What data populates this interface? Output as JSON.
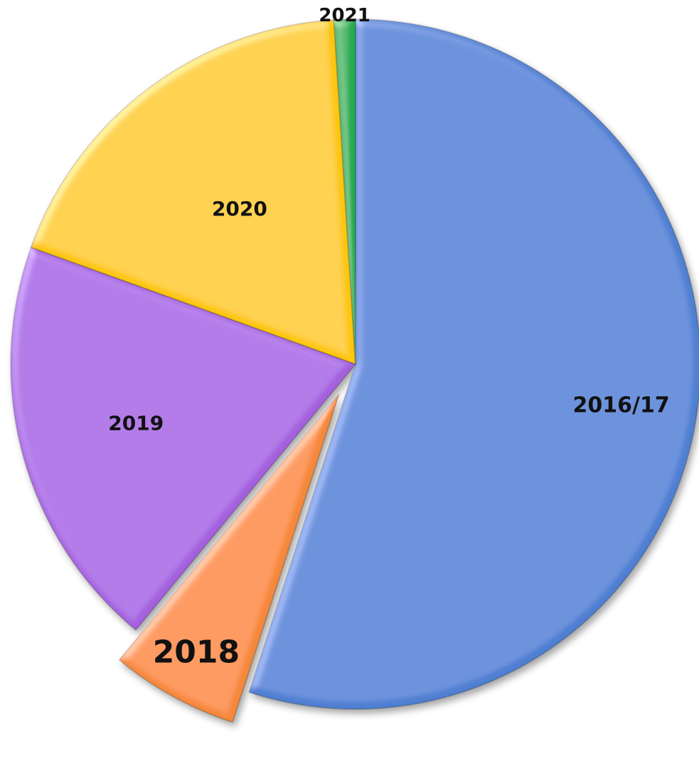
{
  "chart_data": {
    "type": "pie",
    "title": "",
    "categories": [
      "2016/17",
      "2018",
      "2019",
      "2020",
      "2021"
    ],
    "values": [
      55,
      6,
      19.5,
      18.5,
      1
    ],
    "colors": [
      "#4f7fd2",
      "#f5883a",
      "#a461de",
      "#fcc60b",
      "#22aa52"
    ],
    "exploded": [
      "2018"
    ],
    "start_angle_deg": 0,
    "direction": "clockwise",
    "legend": "none",
    "labels_on_slices": true
  }
}
